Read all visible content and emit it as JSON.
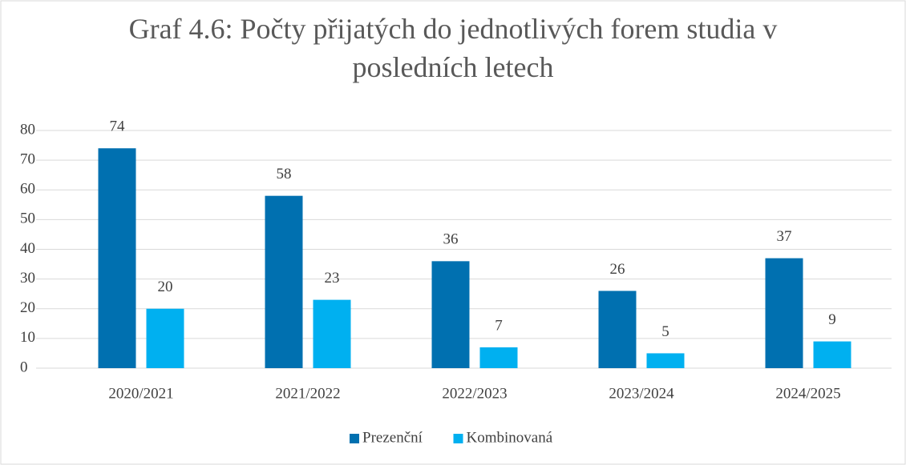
{
  "chart_data": {
    "type": "bar",
    "title": "Graf 4.6: Počty přijatých do jednotlivých forem studia v posledních letech",
    "categories": [
      "2020/2021",
      "2021/2022",
      "2022/2023",
      "2023/2024",
      "2024/2025"
    ],
    "series": [
      {
        "name": "Prezenční",
        "color": "#0070b0",
        "values": [
          74,
          58,
          36,
          26,
          37
        ]
      },
      {
        "name": "Kombinovaná",
        "color": "#00b0f0",
        "values": [
          20,
          23,
          7,
          5,
          9
        ]
      }
    ],
    "ylim": [
      0,
      80
    ],
    "yticks": [
      0,
      10,
      20,
      30,
      40,
      50,
      60,
      70,
      80
    ],
    "grid": true,
    "legend": "bottom"
  }
}
